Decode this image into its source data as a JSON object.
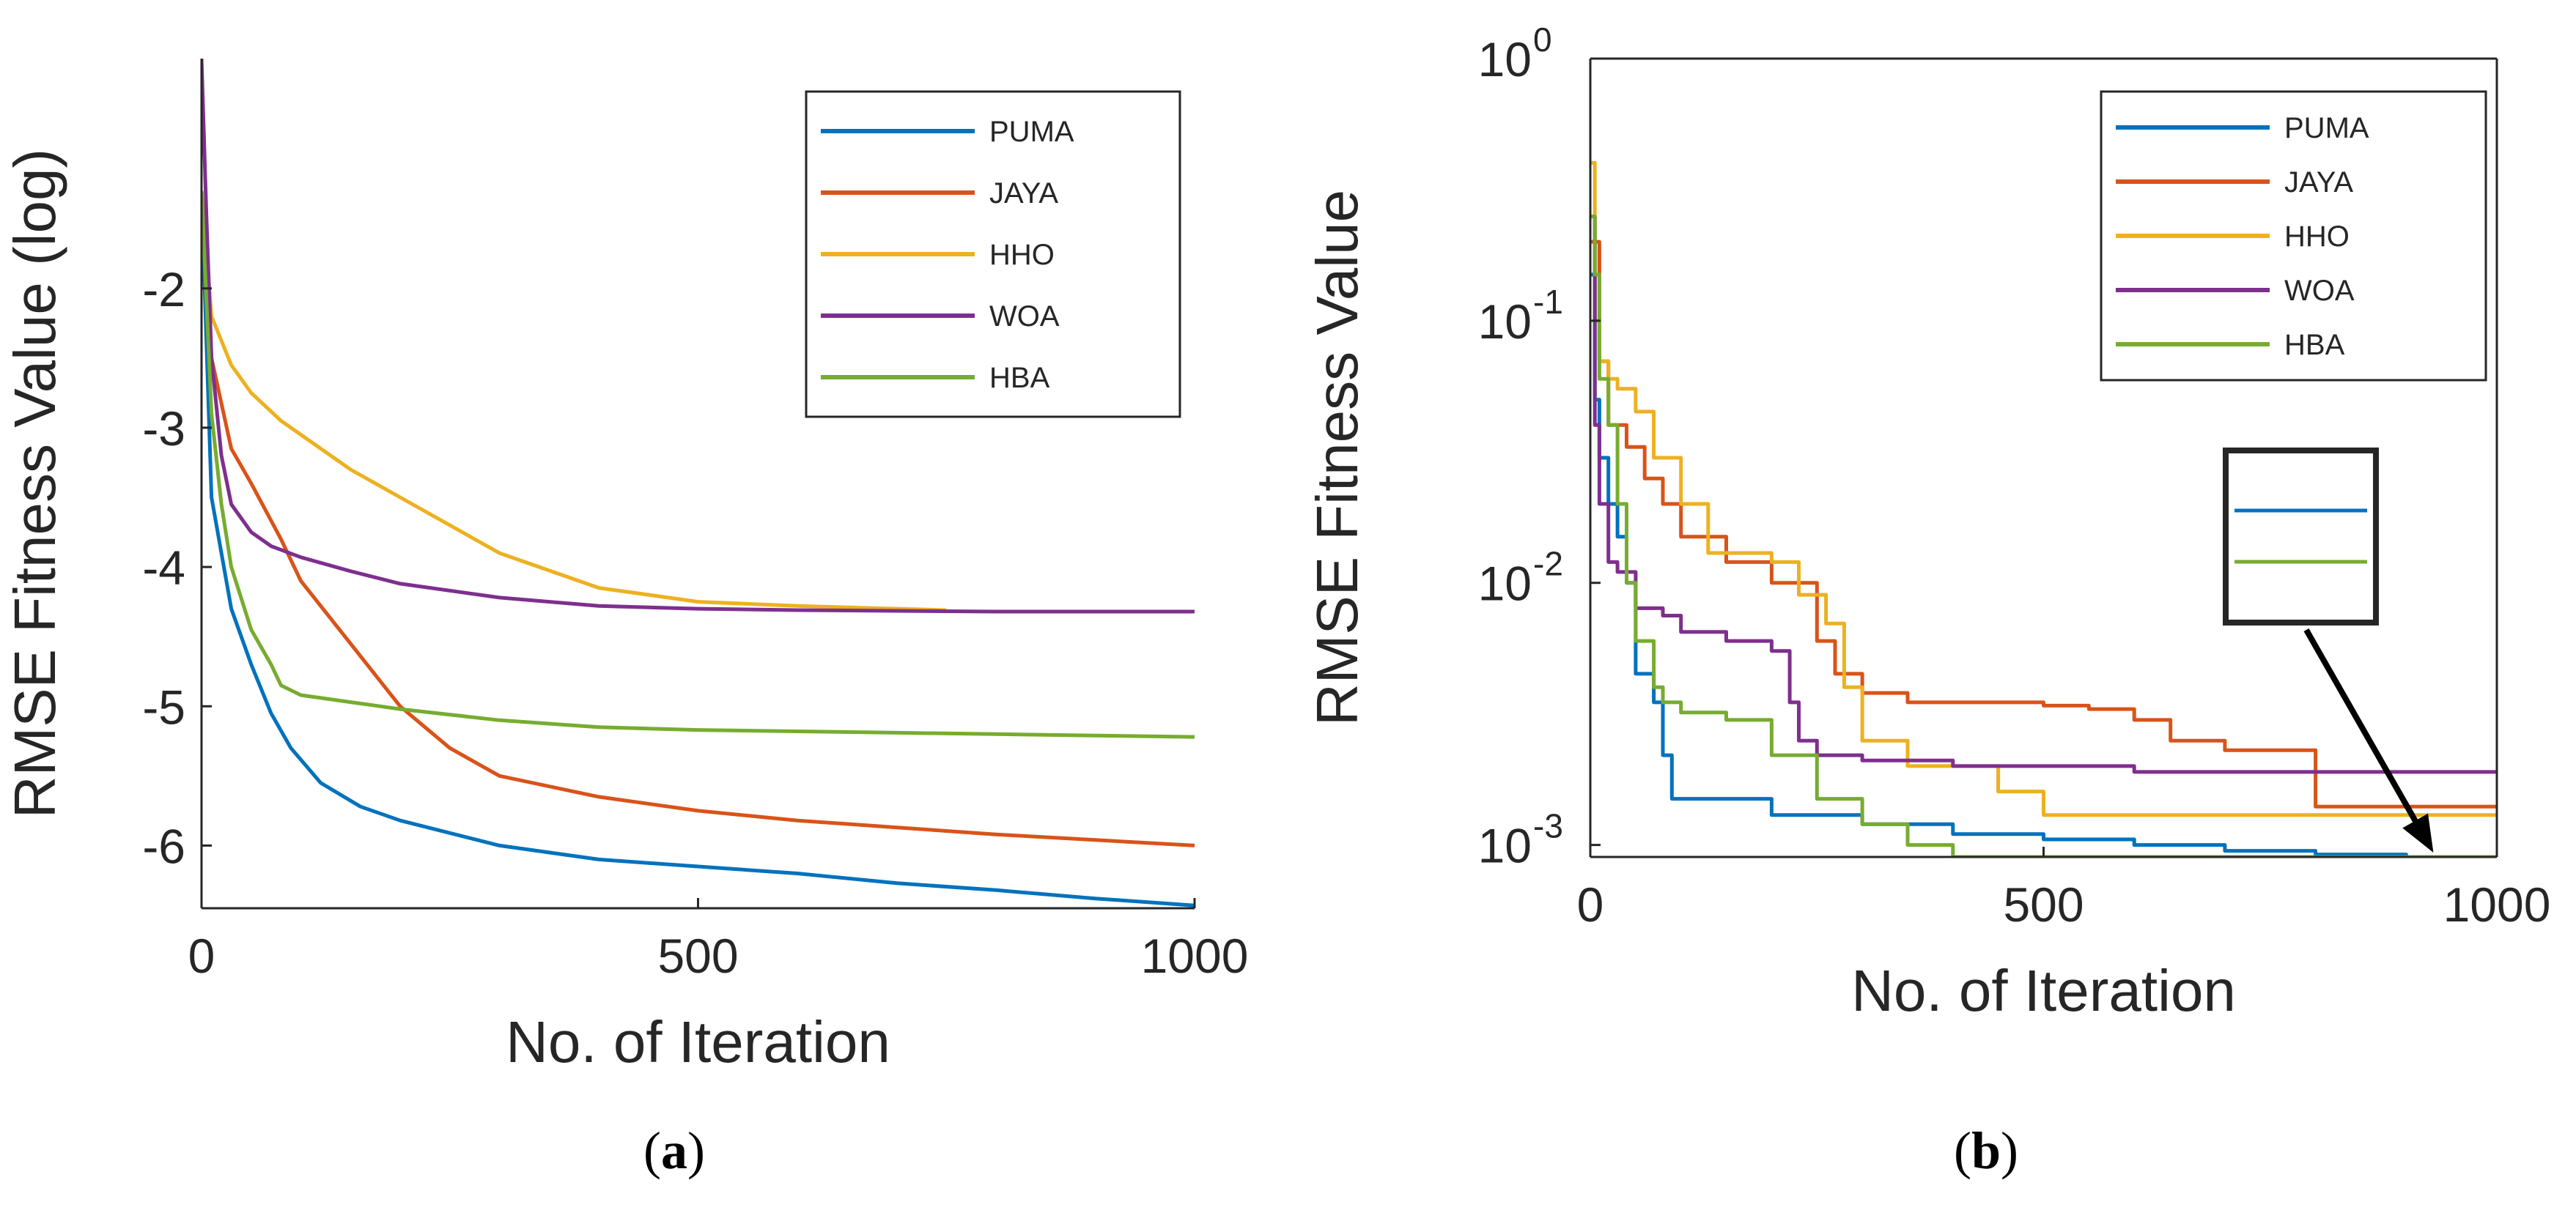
{
  "chart_data": [
    {
      "id": "a",
      "type": "line",
      "caption_letter": "a",
      "xlabel": "No. of Iteration",
      "ylabel": "RMSE Fitness Value (log)",
      "yscale": "linear",
      "xlim": [
        0,
        1000
      ],
      "ylim": [
        -6.45,
        -0.35
      ],
      "xticks": [
        0,
        500,
        1000
      ],
      "xtick_labels": [
        "0",
        "500",
        "1000"
      ],
      "yticks": [
        -2,
        -3,
        -4,
        -5,
        -6
      ],
      "ytick_labels": [
        "-2",
        "-3",
        "-4",
        "-5",
        "-6"
      ],
      "legend_position": "top-right",
      "series": [
        {
          "name": "PUMA",
          "color": "#0072BD",
          "x": [
            0,
            10,
            30,
            50,
            70,
            90,
            120,
            160,
            200,
            300,
            400,
            500,
            600,
            700,
            800,
            900,
            1000
          ],
          "y": [
            -1.3,
            -3.5,
            -4.3,
            -4.7,
            -5.05,
            -5.3,
            -5.55,
            -5.72,
            -5.82,
            -6.0,
            -6.1,
            -6.15,
            -6.2,
            -6.27,
            -6.32,
            -6.38,
            -6.43
          ]
        },
        {
          "name": "JAYA",
          "color": "#D95319",
          "x": [
            0,
            10,
            30,
            50,
            80,
            100,
            150,
            200,
            250,
            300,
            400,
            500,
            600,
            700,
            800,
            900,
            1000
          ],
          "y": [
            -1.3,
            -2.5,
            -3.15,
            -3.4,
            -3.8,
            -4.1,
            -4.55,
            -5.0,
            -5.3,
            -5.5,
            -5.65,
            -5.75,
            -5.82,
            -5.87,
            -5.92,
            -5.96,
            -6.0
          ]
        },
        {
          "name": "HHO",
          "color": "#EDB120",
          "x": [
            0,
            10,
            30,
            50,
            80,
            100,
            150,
            200,
            300,
            400,
            500,
            600,
            700,
            750
          ],
          "y": [
            -1.3,
            -2.2,
            -2.55,
            -2.75,
            -2.95,
            -3.05,
            -3.3,
            -3.5,
            -3.9,
            -4.15,
            -4.25,
            -4.28,
            -4.3,
            -4.31
          ]
        },
        {
          "name": "WOA",
          "color": "#7E2F8E",
          "x": [
            0,
            5,
            10,
            20,
            30,
            50,
            70,
            100,
            150,
            200,
            300,
            400,
            500,
            600,
            800,
            1000
          ],
          "y": [
            -0.35,
            -1.5,
            -2.5,
            -3.2,
            -3.55,
            -3.75,
            -3.85,
            -3.93,
            -4.03,
            -4.12,
            -4.22,
            -4.28,
            -4.3,
            -4.31,
            -4.32,
            -4.32
          ]
        },
        {
          "name": "HBA",
          "color": "#77AC30",
          "x": [
            0,
            10,
            20,
            30,
            50,
            70,
            80,
            100,
            150,
            200,
            300,
            400,
            500,
            600,
            700,
            800,
            900,
            1000
          ],
          "y": [
            -1.3,
            -2.9,
            -3.55,
            -4.0,
            -4.45,
            -4.7,
            -4.85,
            -4.92,
            -4.97,
            -5.02,
            -5.1,
            -5.15,
            -5.17,
            -5.18,
            -5.19,
            -5.2,
            -5.21,
            -5.22
          ]
        }
      ]
    },
    {
      "id": "b",
      "type": "line",
      "caption_letter": "b",
      "xlabel": "No. of Iteration",
      "ylabel": "RMSE Fitness Value",
      "yscale": "log",
      "xlim": [
        0,
        1000
      ],
      "ylim": [
        0.0009,
        1
      ],
      "xticks": [
        0,
        500,
        1000
      ],
      "xtick_labels": [
        "0",
        "500",
        "1000"
      ],
      "yticks": [
        1,
        0.1,
        0.01,
        0.001
      ],
      "ytick_bases": [
        "10",
        "10",
        "10",
        "10"
      ],
      "ytick_exponents": [
        "0",
        "-1",
        "-2",
        "-3"
      ],
      "legend_position": "top-right",
      "annotation": "zoom inset with arrow pointing to converged PUMA and HBA curves near 1000 iterations",
      "series": [
        {
          "name": "PUMA",
          "color": "#0072BD",
          "x": [
            0,
            5,
            10,
            20,
            30,
            40,
            50,
            70,
            80,
            90,
            100,
            150,
            200,
            300,
            400,
            500,
            600,
            700,
            800,
            900,
            1000
          ],
          "y": [
            0.15,
            0.05,
            0.03,
            0.02,
            0.015,
            0.01,
            0.0045,
            0.0035,
            0.0022,
            0.0015,
            0.0015,
            0.0015,
            0.0013,
            0.0012,
            0.0011,
            0.00105,
            0.001,
            0.00095,
            0.00092,
            0.0009,
            0.0009
          ]
        },
        {
          "name": "JAYA",
          "color": "#D95319",
          "x": [
            0,
            10,
            20,
            40,
            60,
            80,
            100,
            150,
            200,
            250,
            270,
            300,
            350,
            400,
            450,
            500,
            550,
            600,
            640,
            700,
            780,
            800,
            1000
          ],
          "y": [
            0.2,
            0.07,
            0.04,
            0.033,
            0.025,
            0.02,
            0.015,
            0.012,
            0.01,
            0.006,
            0.0045,
            0.0038,
            0.0035,
            0.0035,
            0.0035,
            0.0034,
            0.0033,
            0.003,
            0.0025,
            0.0023,
            0.0023,
            0.0014,
            0.0014
          ]
        },
        {
          "name": "HHO",
          "color": "#EDB120",
          "x": [
            0,
            5,
            10,
            20,
            30,
            50,
            70,
            100,
            130,
            150,
            200,
            230,
            260,
            280,
            300,
            350,
            400,
            450,
            500,
            600,
            700,
            800,
            1000
          ],
          "y": [
            0.4,
            0.1,
            0.07,
            0.06,
            0.055,
            0.045,
            0.03,
            0.02,
            0.013,
            0.013,
            0.012,
            0.009,
            0.007,
            0.004,
            0.0025,
            0.002,
            0.002,
            0.0016,
            0.0013,
            0.0013,
            0.0013,
            0.0013,
            0.0013
          ]
        },
        {
          "name": "WOA",
          "color": "#7E2F8E",
          "x": [
            0,
            5,
            10,
            20,
            30,
            50,
            80,
            100,
            150,
            200,
            220,
            230,
            250,
            300,
            400,
            500,
            600,
            700,
            800,
            1000
          ],
          "y": [
            0.25,
            0.04,
            0.02,
            0.012,
            0.011,
            0.008,
            0.0075,
            0.0065,
            0.006,
            0.0055,
            0.0035,
            0.0025,
            0.0022,
            0.0021,
            0.002,
            0.002,
            0.0019,
            0.0019,
            0.0019,
            0.0019
          ]
        },
        {
          "name": "HBA",
          "color": "#77AC30",
          "x": [
            0,
            5,
            10,
            20,
            30,
            40,
            50,
            70,
            80,
            100,
            150,
            200,
            250,
            300,
            350,
            400,
            500,
            600,
            700,
            800,
            1000
          ],
          "y": [
            0.25,
            0.15,
            0.06,
            0.04,
            0.02,
            0.01,
            0.006,
            0.004,
            0.0035,
            0.0032,
            0.003,
            0.0022,
            0.0015,
            0.0012,
            0.001,
            0.0009,
            0.0009,
            0.0009,
            0.0009,
            0.0009,
            0.0009
          ]
        }
      ]
    }
  ]
}
